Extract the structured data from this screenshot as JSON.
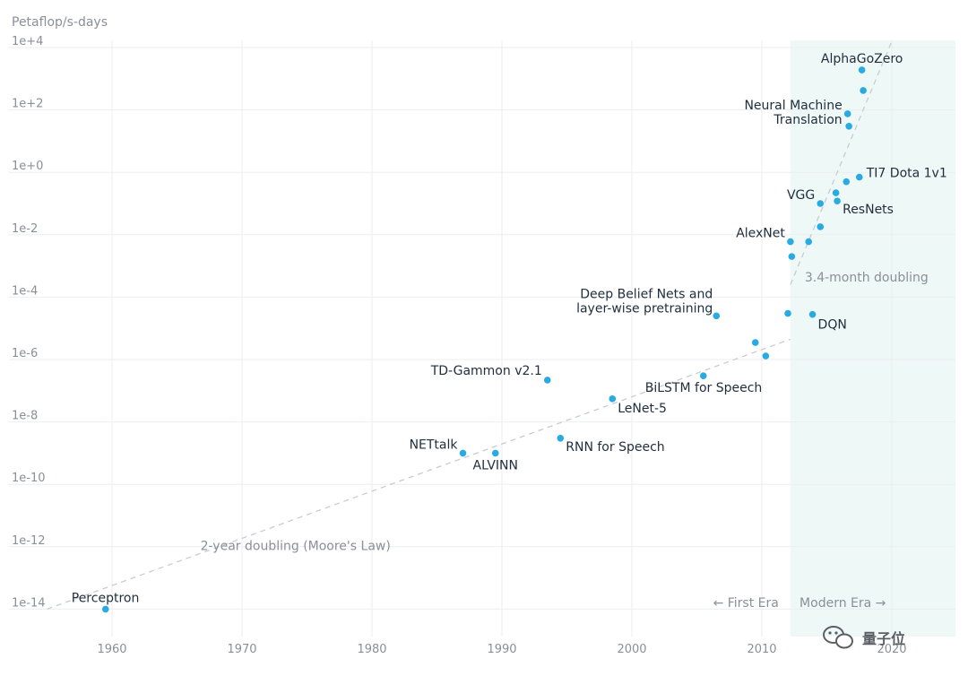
{
  "chart_data": {
    "type": "scatter",
    "title": "",
    "ylabel": "Petaflop/s-days",
    "xlabel": "",
    "y_scale": "log10",
    "xlim": [
      1955,
      2020.5
    ],
    "ylim_exp": [
      -14.25,
      4.25
    ],
    "x_ticks": [
      {
        "value": 1960,
        "label": "1960"
      },
      {
        "value": 1970,
        "label": "1970"
      },
      {
        "value": 1980,
        "label": "1980"
      },
      {
        "value": 1990,
        "label": "1990"
      },
      {
        "value": 2000,
        "label": "2000"
      },
      {
        "value": 2010,
        "label": "2010"
      },
      {
        "value": 2020,
        "label": "2020"
      }
    ],
    "y_ticks": [
      {
        "exp": 4,
        "label": "1e+4"
      },
      {
        "exp": 2,
        "label": "1e+2"
      },
      {
        "exp": 0,
        "label": "1e+0"
      },
      {
        "exp": -2,
        "label": "1e-2"
      },
      {
        "exp": -4,
        "label": "1e-4"
      },
      {
        "exp": -6,
        "label": "1e-6"
      },
      {
        "exp": -8,
        "label": "1e-8"
      },
      {
        "exp": -10,
        "label": "1e-10"
      },
      {
        "exp": -12,
        "label": "1e-12"
      },
      {
        "exp": -14,
        "label": "1e-14"
      }
    ],
    "grid": true,
    "point_color": "#29aae1",
    "modern_era_shade": "#eef8f7",
    "modern_era_start": 2012.2,
    "points": [
      {
        "x": 1959.5,
        "y": 1e-14,
        "label": "Perceptron",
        "lx": -38,
        "ly": -8,
        "anchor": "start"
      },
      {
        "x": 1987.0,
        "y": 1e-09,
        "label": "NETtalk",
        "lx": -6,
        "ly": -5,
        "anchor": "end"
      },
      {
        "x": 1989.5,
        "y": 1e-09,
        "label": "ALVINN",
        "lx": 0,
        "ly": 18,
        "anchor": "middle"
      },
      {
        "x": 1993.5,
        "y": 2.2e-07,
        "label": "TD-Gammon v2.1",
        "lx": -6,
        "ly": -6,
        "anchor": "end"
      },
      {
        "x": 1994.5,
        "y": 3e-09,
        "label": "RNN for Speech",
        "lx": 6,
        "ly": 14,
        "anchor": "start"
      },
      {
        "x": 1998.5,
        "y": 5.5e-08,
        "label": "LeNet-5",
        "lx": 6,
        "ly": 15,
        "anchor": "start"
      },
      {
        "x": 2005.5,
        "y": 3e-07,
        "label": "BiLSTM for Speech",
        "lx": -65,
        "ly": 18,
        "anchor": "start"
      },
      {
        "x": 2006.5,
        "y": 2.5e-05,
        "label": "",
        "lx": 0,
        "ly": 0,
        "anchor": "start"
      },
      {
        "x": 2009.5,
        "y": 3.5e-06,
        "label": "",
        "lx": 0,
        "ly": 0,
        "anchor": "start"
      },
      {
        "x": 2010.3,
        "y": 1.3e-06,
        "label": "",
        "lx": 0,
        "ly": 0,
        "anchor": "start"
      },
      {
        "x": 2012.0,
        "y": 3e-05,
        "label": "",
        "lx": 0,
        "ly": 0,
        "anchor": "start"
      },
      {
        "x": 2012.2,
        "y": 0.006,
        "label": "AlexNet",
        "lx": -6,
        "ly": -5,
        "anchor": "end"
      },
      {
        "x": 2012.3,
        "y": 0.002,
        "label": "",
        "lx": 0,
        "ly": 0,
        "anchor": "start"
      },
      {
        "x": 2013.6,
        "y": 0.006,
        "label": "",
        "lx": 0,
        "ly": 0,
        "anchor": "start"
      },
      {
        "x": 2013.9,
        "y": 2.8e-05,
        "label": "DQN",
        "lx": 6,
        "ly": 16,
        "anchor": "start"
      },
      {
        "x": 2014.5,
        "y": 0.018,
        "label": "",
        "lx": 0,
        "ly": 0,
        "anchor": "start"
      },
      {
        "x": 2014.5,
        "y": 0.1,
        "label": "VGG",
        "lx": -6,
        "ly": -5,
        "anchor": "end"
      },
      {
        "x": 2015.7,
        "y": 0.22,
        "label": "",
        "lx": 0,
        "ly": 0,
        "anchor": "start"
      },
      {
        "x": 2015.8,
        "y": 0.12,
        "label": "ResNets",
        "lx": 6,
        "ly": 14,
        "anchor": "start"
      },
      {
        "x": 2016.5,
        "y": 0.5,
        "label": "",
        "lx": 0,
        "ly": 0,
        "anchor": "start"
      },
      {
        "x": 2016.7,
        "y": 30,
        "label": "",
        "lx": 0,
        "ly": 0,
        "anchor": "start"
      },
      {
        "x": 2016.6,
        "y": 75,
        "label": "",
        "lx": 0,
        "ly": 0,
        "anchor": "start"
      },
      {
        "x": 2017.5,
        "y": 0.7,
        "label": "TI7 Dota 1v1",
        "lx": 8,
        "ly": 0,
        "anchor": "start"
      },
      {
        "x": 2017.7,
        "y": 1900,
        "label": "AlphaGoZero",
        "lx": 0,
        "ly": -8,
        "anchor": "middle"
      },
      {
        "x": 2017.8,
        "y": 420,
        "label": "",
        "lx": 0,
        "ly": 0,
        "anchor": "start"
      }
    ],
    "multiline_labels": [
      {
        "x": 2016.6,
        "y": 75,
        "lines": [
          "Neural Machine",
          "Translation"
        ],
        "lx": -6,
        "ly": -5,
        "anchor": "end"
      },
      {
        "x": 2006.5,
        "y": 2.5e-05,
        "lines": [
          "Deep Belief Nets and",
          "layer-wise pretraining"
        ],
        "lx": -4,
        "ly": -20,
        "anchor": "end"
      }
    ],
    "trend_lines": [
      {
        "name": "2-year doubling (Moore's Law)",
        "from": [
          1955,
          -14
        ],
        "to": [
          2012.2,
          -5.35
        ]
      },
      {
        "name": "3.4-month doubling",
        "from": [
          2012.2,
          -3.6
        ],
        "to": [
          2020,
          4.2
        ]
      }
    ],
    "annotations": [
      {
        "text": "2-year doubling (Moore's Law)",
        "x": 1966.8,
        "y_exp": -12.1,
        "anchor": "start"
      },
      {
        "text": "3.4-month doubling",
        "x": 2013.3,
        "y_exp": -3.5,
        "anchor": "start"
      }
    ],
    "era_labels": [
      {
        "text": "← First Era",
        "x": 2011.3,
        "anchor": "end"
      },
      {
        "text": "Modern Era →",
        "x": 2012.9,
        "anchor": "start"
      }
    ]
  },
  "watermark": {
    "text": "量子位",
    "icon": "wechat-icon"
  }
}
